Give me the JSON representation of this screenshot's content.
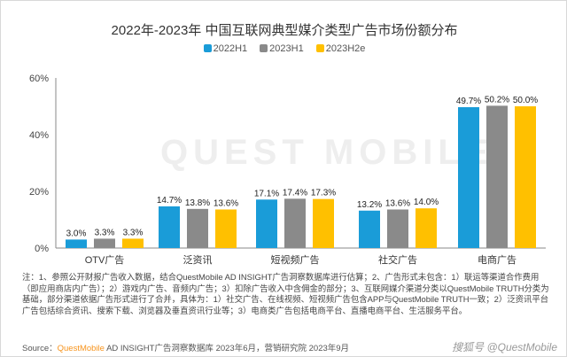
{
  "chart_data": {
    "type": "bar",
    "title": "2022年-2023年 中国互联网典型媒介类型广告市场份额分布",
    "categories": [
      "OTV广告",
      "泛资讯",
      "短视频广告",
      "社交广告",
      "电商广告"
    ],
    "series": [
      {
        "name": "2022H1",
        "color": "#1a9cd8",
        "values": [
          3.0,
          14.7,
          17.1,
          13.2,
          49.7
        ]
      },
      {
        "name": "2023H1",
        "color": "#8a8a8a",
        "values": [
          3.3,
          13.8,
          17.4,
          13.6,
          50.2
        ]
      },
      {
        "name": "2023H2e",
        "color": "#ffc000",
        "values": [
          3.3,
          13.6,
          17.3,
          14.0,
          50.0
        ]
      }
    ],
    "yticks": [
      "0%",
      "20%",
      "40%",
      "60%"
    ],
    "ylim": [
      0,
      60
    ],
    "grid": false,
    "legend": "top"
  },
  "note": "注：1、参照公开财报广告收入数据，结合QuestMobile AD INSIGHT广告洞察数据库进行估算；2、广告形式未包含：1）联运等渠道合作费用（即应用商店内广告）；2）游戏内广告、音频内广告；3）扣除广告收入中含佣金的部分；3、互联网媒介渠道分类以QuestMobile TRUTH分类为基础，部分渠道依据广告形式进行了合并，具体为：1）社交广告、在线视频、短视频广告包含APP与QuestMobile TRUTH一致；2）泛资讯平台广告包括综合资讯、搜索下载、浏览器及垂直资讯行业等；3）电商类广告包括电商平台、直播电商平台、生活服务平台。",
  "source": {
    "label": "Source：",
    "brand": "QuestMobile",
    "rest": " AD INSIGHT广告洞察数据库 2023年6月，营销研究院 2023年9月"
  },
  "watermark": "搜狐号 @QuestMobile",
  "background_watermark": "QUEST MOBILE"
}
